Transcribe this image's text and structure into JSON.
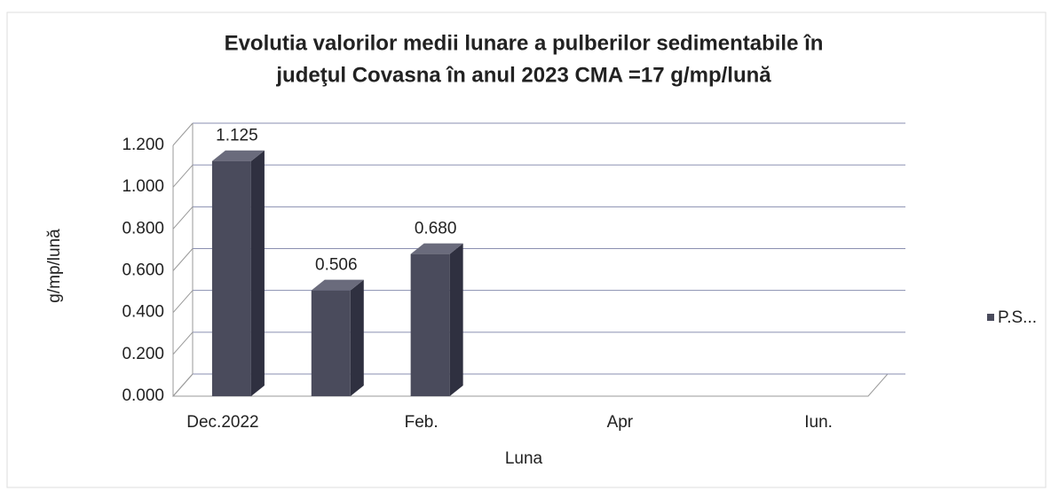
{
  "chart_data": {
    "type": "bar3d",
    "title": [
      "Evolutia valorilor medii lunare a pulberilor sedimentabile în",
      "judeţul Covasna  în anul 2023   CMA =17 g/mp/lună"
    ],
    "categories": [
      "Dec.2022",
      null,
      "Feb.",
      null,
      "Apr",
      null,
      "Iun."
    ],
    "series": [
      {
        "name": "P.S...",
        "color": "#4a4b5c",
        "values": [
          1.125,
          0.506,
          0.68,
          null,
          null,
          null,
          null
        ],
        "value_labels": [
          "1.125",
          "0.506",
          "0.680",
          null,
          null,
          null,
          null
        ]
      }
    ],
    "xlabel": "Luna",
    "ylabel": "g/mp/lună",
    "ylim": [
      0,
      1.2
    ],
    "yticks": [
      {
        "value": 0,
        "label": "0.000"
      },
      {
        "value": 0.2,
        "label": "0.200"
      },
      {
        "value": 0.4,
        "label": "0.400"
      },
      {
        "value": 0.6,
        "label": "0.600"
      },
      {
        "value": 0.8,
        "label": "0.800"
      },
      {
        "value": 1.0,
        "label": "1.000"
      },
      {
        "value": 1.2,
        "label": "1.200"
      }
    ],
    "grid": true,
    "legend": "right"
  }
}
